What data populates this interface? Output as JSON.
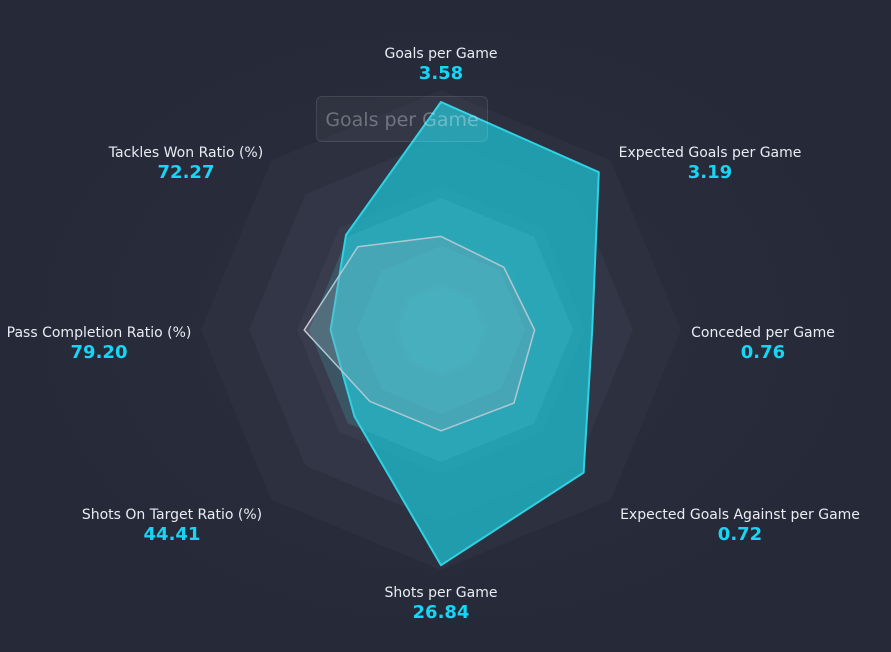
{
  "chart_data": {
    "type": "radar",
    "title": "Goals per Game",
    "axes": [
      {
        "name": "Goals per Game",
        "value": "3.58"
      },
      {
        "name": "Expected Goals per Game",
        "value": "3.19"
      },
      {
        "name": "Conceded per Game",
        "value": "0.76"
      },
      {
        "name": "Expected Goals Against per Game",
        "value": "0.72"
      },
      {
        "name": "Shots per Game",
        "value": "26.84"
      },
      {
        "name": "Shots On Target Ratio (%)",
        "value": "44.41"
      },
      {
        "name": "Pass Completion Ratio (%)",
        "value": "79.20"
      },
      {
        "name": "Tackles Won Ratio (%)",
        "value": "72.27"
      }
    ],
    "series": [
      {
        "values": [
          0.95,
          0.93,
          0.63,
          0.84,
          0.98,
          0.51,
          0.46,
          0.56
        ],
        "color": "#1fb5c6"
      },
      {
        "values": [
          0.39,
          0.37,
          0.39,
          0.43,
          0.42,
          0.42,
          0.57,
          0.49
        ],
        "color": "#9aa1ab"
      }
    ],
    "rings": 5,
    "colors": {
      "value_text": "#17d6f5",
      "label_text": "#e9ecf2",
      "background": "#262a38"
    }
  }
}
